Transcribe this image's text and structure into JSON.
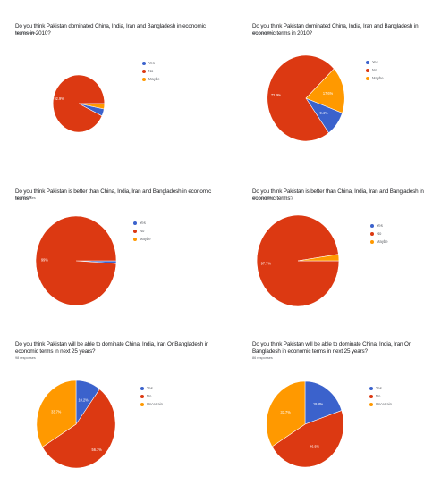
{
  "colors": {
    "yes": "#3b62cc",
    "no": "#dc3912",
    "maybe": "#ff9900"
  },
  "chart_data": [
    {
      "type": "pie",
      "question": "Do you think Pakistan dominated China, India, Iran and Bangladesh in economic terms in 2010?",
      "responses": "98 responses",
      "categories": [
        "Yes",
        "No",
        "Maybe"
      ],
      "values": [
        4.1,
        92.9,
        3.0
      ],
      "labels": [
        "",
        "92.9%",
        ""
      ],
      "legend": "right"
    },
    {
      "type": "pie",
      "question": "Do you think Pakistan dominated China, India, Iran and Bangladesh in economic terms in 2010?",
      "responses": "85 responses",
      "categories": [
        "Yes",
        "No",
        "Maybe"
      ],
      "values": [
        9.4,
        72.9,
        17.6
      ],
      "labels": [
        "9.4%",
        "72.9%",
        "17.6%"
      ],
      "legend": "right"
    },
    {
      "type": "pie",
      "question": "Do you think Pakistan is better than China, India, Iran and Bangladesh in economic terms?",
      "responses": "98 responses",
      "categories": [
        "Yes",
        "No",
        "Maybe"
      ],
      "values": [
        1,
        99,
        0
      ],
      "labels": [
        "",
        "99%",
        ""
      ],
      "legend": "right"
    },
    {
      "type": "pie",
      "question": "Do you think Pakistan is better than China, India, Iran and Bangladesh in economic terms?",
      "responses": "86 responses",
      "categories": [
        "Yes",
        "No",
        "Maybe"
      ],
      "values": [
        0,
        97.7,
        2.3
      ],
      "labels": [
        "",
        "97.7%",
        ""
      ],
      "legend": "right"
    },
    {
      "type": "pie",
      "question": "Do you think Pakistan will be able to dominate China, India, Iran Or Bangladesh in economic terms in next 25 years?",
      "responses": "98 responses",
      "categories": [
        "Yes",
        "No",
        "Uncertain"
      ],
      "values": [
        10.2,
        56.1,
        33.7
      ],
      "labels": [
        "10.2%",
        "56.1%",
        "33.7%"
      ],
      "legend": "right"
    },
    {
      "type": "pie",
      "question": "Do you think Pakistan will be able to dominate China, India, Iran Or Bangladesh in economic terms in next 25 years?",
      "responses": "86 responses",
      "categories": [
        "Yes",
        "No",
        "Uncertain"
      ],
      "values": [
        19.8,
        46.5,
        33.7
      ],
      "labels": [
        "19.8%",
        "46.5%",
        "33.7%"
      ],
      "legend": "right"
    }
  ]
}
